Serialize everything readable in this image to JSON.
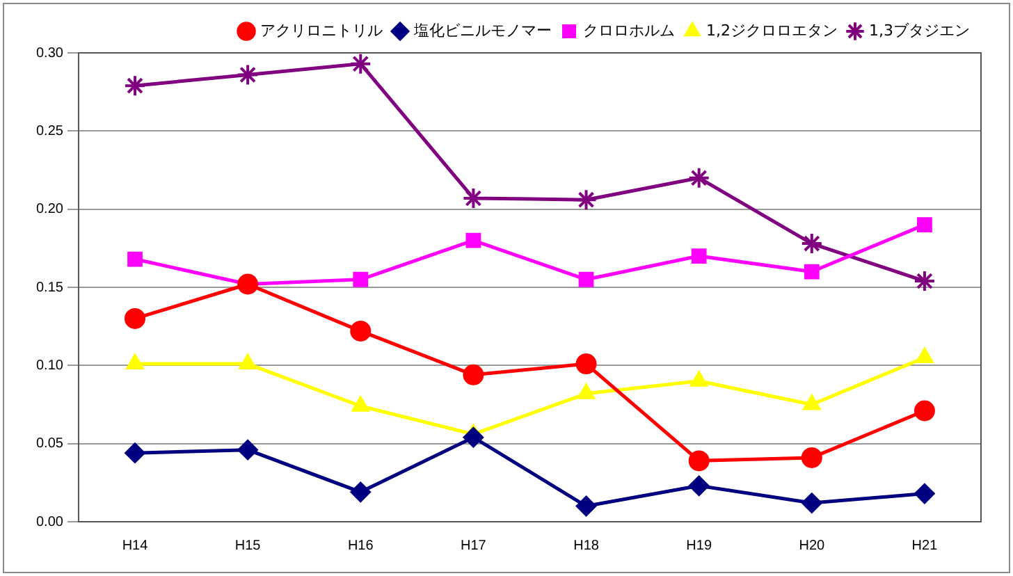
{
  "chart_data": {
    "type": "line",
    "categories": [
      "H14",
      "H15",
      "H16",
      "H17",
      "H18",
      "H19",
      "H20",
      "H21"
    ],
    "series": [
      {
        "name": "アクリロニトリル",
        "color": "#ff0000",
        "marker": "circle",
        "values": [
          0.13,
          0.152,
          0.122,
          0.094,
          0.101,
          0.039,
          0.041,
          0.071
        ]
      },
      {
        "name": "塩化ビニルモノマー",
        "color": "#000080",
        "marker": "diamond",
        "values": [
          0.044,
          0.046,
          0.019,
          0.054,
          0.01,
          0.023,
          0.012,
          0.018
        ]
      },
      {
        "name": "クロロホルム",
        "color": "#ff00ff",
        "marker": "square",
        "values": [
          0.168,
          0.152,
          0.155,
          0.18,
          0.155,
          0.17,
          0.16,
          0.19
        ]
      },
      {
        "name": "1,2ジクロロエタン",
        "color": "#ffff00",
        "marker": "triangle",
        "values": [
          0.101,
          0.101,
          0.074,
          0.056,
          0.082,
          0.09,
          0.075,
          0.105
        ]
      },
      {
        "name": "1,3ブタジエン",
        "color": "#800080",
        "marker": "cross",
        "values": [
          0.279,
          0.286,
          0.293,
          0.207,
          0.206,
          0.22,
          0.178,
          0.154
        ]
      }
    ],
    "ylim": [
      0,
      0.3
    ],
    "yticks": [
      {
        "value": 0,
        "label": "0.00"
      },
      {
        "value": 0.05,
        "label": "0.05"
      },
      {
        "value": 0.1,
        "label": "0.10"
      },
      {
        "value": 0.15,
        "label": "0.15"
      },
      {
        "value": 0.2,
        "label": "0.20"
      },
      {
        "value": 0.25,
        "label": "0.25"
      },
      {
        "value": 0.3,
        "label": "0.30"
      }
    ],
    "grid": "y",
    "legend": "top right",
    "line_style": "solid"
  }
}
